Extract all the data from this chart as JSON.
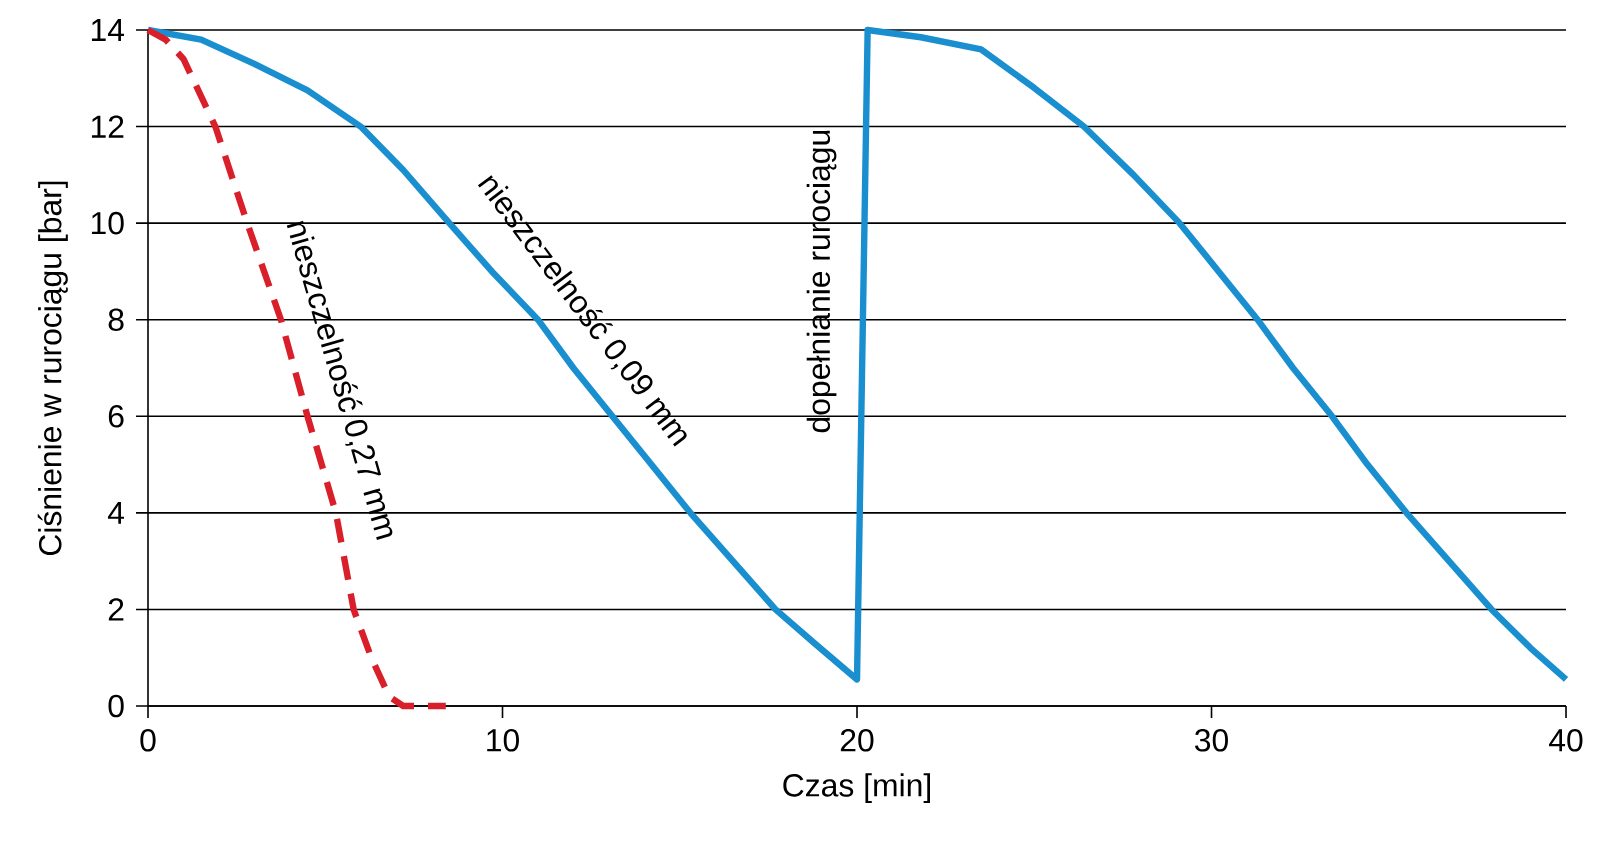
{
  "chart_data": {
    "type": "line",
    "xlabel": "Czas [min]",
    "ylabel": "Ciśnienie w rurociągu [bar]",
    "xlim": [
      0,
      40
    ],
    "ylim": [
      0,
      14
    ],
    "xticks": [
      0,
      10,
      20,
      30,
      40
    ],
    "yticks": [
      0,
      2,
      4,
      6,
      8,
      10,
      12,
      14
    ],
    "grid": "y",
    "legend": false,
    "marker": "none",
    "series": [
      {
        "color": "#1a8fd0",
        "line_style": "solid",
        "x": [
          0,
          1.5,
          3.0,
          4.5,
          6.0,
          7.2,
          8.5,
          9.7,
          11.0,
          12.0,
          13.1,
          14.2,
          15.3,
          16.5,
          17.7,
          18.8,
          20,
          20.3,
          21.8,
          23.5,
          25,
          26.4,
          27.8,
          29.1,
          30.2,
          31.3,
          32.3,
          33.4,
          34.4,
          35.5,
          36.7,
          37.9,
          39,
          40
        ],
        "values": [
          14,
          13.8,
          13.3,
          12.75,
          12,
          11.1,
          10,
          9,
          8,
          7,
          6,
          5,
          4,
          3,
          2,
          1.3,
          0.55,
          14,
          13.85,
          13.6,
          12.8,
          12,
          11,
          10,
          9,
          8,
          7,
          6,
          5,
          4,
          3,
          2,
          1.2,
          0.55
        ]
      },
      {
        "color": "#d9202a",
        "line_style": "dashed",
        "x": [
          0,
          0.5,
          1.0,
          1.9,
          2.8,
          3.75,
          4.5,
          5.3,
          5.8,
          6.3,
          6.8,
          7.2,
          7.6,
          8.4
        ],
        "values": [
          14,
          13.8,
          13.4,
          12,
          10,
          8,
          6,
          4,
          2,
          1,
          0.2,
          0,
          0,
          0
        ]
      }
    ],
    "annotations": [
      "nieszczelność 0,27 mm",
      "nieszczelność 0,09 mm",
      "dopełnianie rurociągu"
    ]
  }
}
